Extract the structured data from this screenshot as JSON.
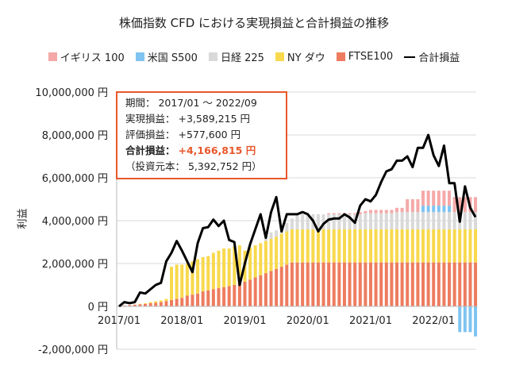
{
  "chart_data": {
    "type": "bar",
    "title": "株価指数 CFD における実現損益と合計損益の推移",
    "ylabel": "利益",
    "ylim": [
      -2000000,
      10000000
    ],
    "yticks": [
      -2000000,
      0,
      2000000,
      4000000,
      6000000,
      8000000,
      10000000
    ],
    "ytick_labels": [
      "-2,000,000 円",
      "0 円",
      "2,000,000 円",
      "4,000,000 円",
      "6,000,000 円",
      "8,000,000 円",
      "10,000,000 円"
    ],
    "xtick_labels": [
      "2017/01",
      "2018/01",
      "2019/01",
      "2020/01",
      "2021/01",
      "2022/01"
    ],
    "grid": true,
    "legend_position": "top",
    "stacked": true,
    "series": [
      {
        "name": "イギリス 100",
        "color": "#f4a9a8",
        "kind": "bar",
        "values": [
          0,
          0,
          0,
          0,
          0,
          0,
          0,
          0,
          0,
          0,
          0,
          0,
          0,
          0,
          0,
          0,
          0,
          0,
          0,
          0,
          0,
          0,
          0,
          0,
          0,
          0,
          0,
          0,
          0,
          0,
          0,
          0,
          0,
          0,
          0,
          0,
          0,
          0,
          0,
          0,
          50000,
          50000,
          50000,
          50000,
          50000,
          50000,
          100000,
          100000,
          150000,
          150000,
          150000,
          150000,
          150000,
          200000,
          200000,
          600000,
          600000,
          600000,
          700000,
          700000,
          700000,
          700000,
          700000,
          700000,
          700000,
          700000,
          700000,
          700000,
          700000
        ]
      },
      {
        "name": "米国 S500",
        "color": "#7fc4f1",
        "kind": "bar",
        "values": [
          0,
          0,
          0,
          0,
          0,
          0,
          0,
          0,
          0,
          0,
          0,
          0,
          0,
          0,
          0,
          0,
          0,
          0,
          0,
          0,
          0,
          0,
          0,
          0,
          0,
          0,
          0,
          0,
          0,
          0,
          0,
          0,
          0,
          0,
          0,
          0,
          0,
          0,
          0,
          0,
          0,
          0,
          0,
          0,
          0,
          0,
          0,
          0,
          0,
          0,
          0,
          0,
          0,
          0,
          0,
          0,
          0,
          0,
          300000,
          300000,
          300000,
          300000,
          300000,
          300000,
          0,
          -1200000,
          -1200000,
          -1200000,
          -1400000
        ]
      },
      {
        "name": "日経 225",
        "color": "#d9d9d9",
        "kind": "bar",
        "values": [
          0,
          0,
          0,
          0,
          0,
          0,
          0,
          0,
          0,
          0,
          0,
          0,
          0,
          0,
          0,
          0,
          0,
          0,
          0,
          0,
          0,
          0,
          0,
          0,
          0,
          0,
          0,
          0,
          300000,
          300000,
          300000,
          400000,
          400000,
          500000,
          700000,
          700000,
          700000,
          700000,
          700000,
          700000,
          700000,
          700000,
          700000,
          700000,
          700000,
          700000,
          700000,
          750000,
          750000,
          750000,
          750000,
          750000,
          750000,
          800000,
          800000,
          800000,
          800000,
          800000,
          800000,
          800000,
          800000,
          800000,
          800000,
          800000,
          800000,
          800000,
          800000,
          800000,
          800000
        ]
      },
      {
        "name": "NY ダウ",
        "color": "#f8d94d",
        "kind": "bar",
        "values": [
          0,
          0,
          0,
          0,
          20000,
          30000,
          50000,
          70000,
          80000,
          100000,
          1550000,
          1600000,
          1550000,
          1500000,
          1550000,
          1600000,
          1600000,
          1600000,
          1700000,
          1750000,
          1800000,
          1750000,
          1800000,
          1800000,
          1450000,
          1500000,
          1500000,
          1500000,
          1500000,
          1500000,
          1500000,
          1550000,
          1550000,
          1550000,
          1550000,
          1550000,
          1550000,
          1550000,
          1550000,
          1550000,
          1550000,
          1550000,
          1550000,
          1550000,
          1550000,
          1550000,
          1550000,
          1550000,
          1550000,
          1550000,
          1550000,
          1550000,
          1550000,
          1550000,
          1550000,
          1550000,
          1550000,
          1550000,
          1550000,
          1550000,
          1550000,
          1550000,
          1550000,
          1550000,
          1550000,
          1550000,
          1550000,
          1550000,
          1550000
        ]
      },
      {
        "name": "FTSE100",
        "color": "#ee7c5f",
        "kind": "bar",
        "values": [
          20000,
          40000,
          60000,
          80000,
          100000,
          120000,
          150000,
          170000,
          200000,
          250000,
          300000,
          350000,
          400000,
          500000,
          550000,
          600000,
          700000,
          750000,
          800000,
          850000,
          900000,
          950000,
          1000000,
          1050000,
          1150000,
          1250000,
          1350000,
          1450000,
          1550000,
          1650000,
          1750000,
          1850000,
          1950000,
          2050000,
          2050000,
          2050000,
          2050000,
          2050000,
          2050000,
          2050000,
          2050000,
          2050000,
          2050000,
          2050000,
          2050000,
          2050000,
          2050000,
          2050000,
          2050000,
          2050000,
          2050000,
          2050000,
          2050000,
          2050000,
          2050000,
          2050000,
          2050000,
          2050000,
          2050000,
          2050000,
          2050000,
          2050000,
          2050000,
          2050000,
          2050000,
          2050000,
          2050000,
          2050000,
          2050000
        ]
      },
      {
        "name": "合計損益",
        "color": "#000000",
        "kind": "line",
        "values": [
          0,
          200000,
          150000,
          200000,
          650000,
          600000,
          800000,
          1000000,
          1100000,
          2100000,
          2500000,
          3050000,
          2600000,
          2100000,
          1600000,
          2950000,
          3650000,
          3700000,
          4050000,
          3750000,
          4000000,
          3100000,
          3000000,
          1000000,
          2000000,
          2900000,
          3600000,
          4300000,
          3200000,
          4400000,
          5100000,
          3500000,
          4300000,
          4300000,
          4300000,
          4400000,
          4300000,
          4000000,
          3500000,
          3850000,
          4050000,
          4100000,
          4100000,
          4300000,
          4150000,
          3900000,
          4700000,
          5000000,
          4900000,
          5200000,
          5800000,
          6300000,
          6400000,
          6800000,
          6800000,
          7000000,
          6500000,
          7400000,
          7400000,
          8000000,
          7050000,
          6550000,
          7500000,
          5750000,
          5750000,
          3950000,
          5600000,
          4600000,
          4166815
        ]
      }
    ]
  },
  "summary_box": {
    "period": "期間： 2017/01 ～ 2022/09",
    "realized": "実現損益： +3,589,215 円",
    "unrealized": "評価損益： +577,600 円",
    "total_label": "合計損益：",
    "total_value": "+4,166,815 円",
    "principal": "（投資元本： 5,392,752 円）"
  }
}
